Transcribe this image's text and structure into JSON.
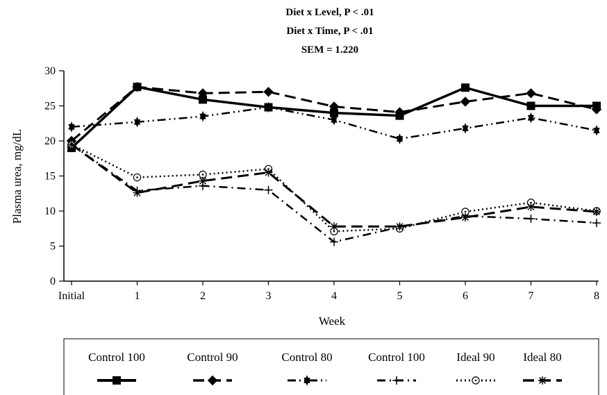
{
  "chart_data": {
    "type": "line",
    "title": [
      "Diet x Level, P < .01",
      "Diet x Time, P < .01",
      "SEM = 1.220"
    ],
    "xlabel": "Week",
    "ylabel": "Plasma urea, mg/dL",
    "categories": [
      "Initial",
      "1",
      "2",
      "3",
      "4",
      "5",
      "6",
      "7",
      "8"
    ],
    "yticks": [
      "0",
      "5",
      "10",
      "15",
      "20",
      "25",
      "30"
    ],
    "ylim": [
      0,
      30
    ],
    "grid": false,
    "legend_position": "bottom",
    "series": [
      {
        "name": "Control 100",
        "values": [
          19,
          27.7,
          25.9,
          24.8,
          24.0,
          23.6,
          27.6,
          25.0,
          25.0
        ],
        "line": "solid-thick",
        "marker": "square-icon"
      },
      {
        "name": "Control 90",
        "values": [
          20,
          27.7,
          26.8,
          27.0,
          24.9,
          24.1,
          25.6,
          26.8,
          24.5
        ],
        "line": "long-dash",
        "marker": "diamond-icon"
      },
      {
        "name": "Control 80",
        "values": [
          22,
          22.7,
          23.5,
          24.8,
          23.0,
          20.3,
          21.8,
          23.3,
          21.5
        ],
        "line": "dash-dot-dot",
        "marker": "star-icon"
      },
      {
        "name": "Control 100",
        "values": [
          19.5,
          12.9,
          13.6,
          13.0,
          5.6,
          7.7,
          9.3,
          8.9,
          8.3
        ],
        "line": "dash-dot",
        "marker": "plus-icon"
      },
      {
        "name": "Ideal 90",
        "values": [
          19.5,
          14.8,
          15.2,
          16.0,
          7.1,
          7.5,
          9.9,
          11.2,
          10.0
        ],
        "line": "dotted",
        "marker": "circle-icon"
      },
      {
        "name": "Ideal 80",
        "values": [
          19.5,
          12.6,
          14.3,
          15.5,
          7.8,
          7.8,
          9.1,
          10.6,
          9.9
        ],
        "line": "long-dash",
        "marker": "asterisk-icon"
      }
    ]
  }
}
